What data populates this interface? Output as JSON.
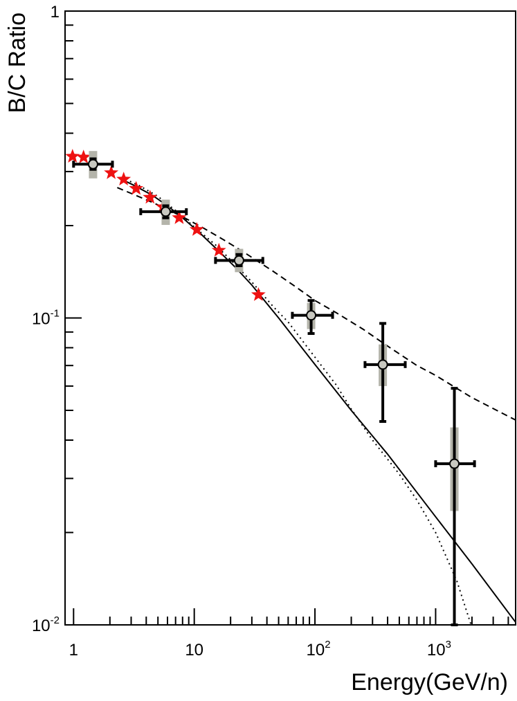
{
  "chart_data": {
    "type": "scatter",
    "xlabel": "Energy(GeV/n)",
    "ylabel": "B/C Ratio",
    "xscale": "log",
    "yscale": "log",
    "xlim": [
      0.85,
      4600
    ],
    "ylim": [
      0.01,
      1
    ],
    "grid": false,
    "x_ticks": [
      {
        "value": 1,
        "base": "1",
        "exp": ""
      },
      {
        "value": 10,
        "base": "10",
        "exp": ""
      },
      {
        "value": 100,
        "base": "10",
        "exp": "2"
      },
      {
        "value": 1000,
        "base": "10",
        "exp": "3"
      }
    ],
    "y_ticks": [
      {
        "value": 1,
        "base": "1",
        "exp": ""
      },
      {
        "value": 0.1,
        "base": "10",
        "exp": "-1"
      },
      {
        "value": 0.01,
        "base": "10",
        "exp": "-2"
      }
    ],
    "series": [
      {
        "style": "circle-errorbars",
        "color": "#000000",
        "fill": "#c8c8c0",
        "syst_color": "#b4b4aa",
        "points": [
          {
            "x": 1.45,
            "y": 0.317,
            "xlo": 1.0,
            "xhi": 2.1,
            "ylo": 0.305,
            "yhi": 0.33,
            "slo": 0.285,
            "shi": 0.35
          },
          {
            "x": 5.8,
            "y": 0.222,
            "xlo": 3.6,
            "xhi": 8.6,
            "ylo": 0.212,
            "yhi": 0.232,
            "slo": 0.201,
            "shi": 0.243
          },
          {
            "x": 23.5,
            "y": 0.154,
            "xlo": 15.0,
            "xhi": 37.0,
            "ylo": 0.148,
            "yhi": 0.161,
            "slo": 0.141,
            "shi": 0.168
          },
          {
            "x": 93,
            "y": 0.102,
            "xlo": 65,
            "xhi": 140,
            "ylo": 0.089,
            "yhi": 0.114,
            "slo": 0.092,
            "shi": 0.112
          },
          {
            "x": 365,
            "y": 0.0705,
            "xlo": 260,
            "xhi": 560,
            "ylo": 0.046,
            "yhi": 0.096,
            "slo": 0.06,
            "shi": 0.082
          },
          {
            "x": 1430,
            "y": 0.0335,
            "xlo": 1000,
            "xhi": 2100,
            "ylo": 0.01,
            "yhi": 0.059,
            "slo": 0.0235,
            "shi": 0.044
          }
        ]
      },
      {
        "style": "stars",
        "color": "#ee1111",
        "points": [
          {
            "x": 0.98,
            "y": 0.336
          },
          {
            "x": 1.21,
            "y": 0.334
          },
          {
            "x": 2.05,
            "y": 0.297
          },
          {
            "x": 2.6,
            "y": 0.283
          },
          {
            "x": 3.3,
            "y": 0.264
          },
          {
            "x": 4.3,
            "y": 0.247
          },
          {
            "x": 5.5,
            "y": 0.23
          },
          {
            "x": 7.5,
            "y": 0.212
          },
          {
            "x": 10.5,
            "y": 0.194
          },
          {
            "x": 16,
            "y": 0.166
          },
          {
            "x": 34,
            "y": 0.119
          }
        ]
      },
      {
        "style": "solid-line",
        "color": "#000000",
        "points": [
          [
            2.5,
            0.283
          ],
          [
            3.2,
            0.27
          ],
          [
            4.5,
            0.251
          ],
          [
            6,
            0.232
          ],
          [
            8,
            0.212
          ],
          [
            11,
            0.19
          ],
          [
            16,
            0.165
          ],
          [
            22,
            0.146
          ],
          [
            30,
            0.128
          ],
          [
            50,
            0.1
          ],
          [
            100,
            0.0705
          ],
          [
            200,
            0.05
          ],
          [
            400,
            0.036
          ],
          [
            1000,
            0.0225
          ],
          [
            2000,
            0.0158
          ],
          [
            4600,
            0.0102
          ]
        ]
      },
      {
        "style": "dashed-line",
        "color": "#000000",
        "points": [
          [
            2.3,
            0.266
          ],
          [
            3.2,
            0.252
          ],
          [
            4.5,
            0.238
          ],
          [
            6,
            0.226
          ],
          [
            8.5,
            0.211
          ],
          [
            12,
            0.196
          ],
          [
            17,
            0.181
          ],
          [
            25,
            0.165
          ],
          [
            45,
            0.142
          ],
          [
            70,
            0.126
          ],
          [
            100,
            0.114
          ],
          [
            150,
            0.104
          ],
          [
            250,
            0.092
          ],
          [
            400,
            0.081
          ],
          [
            700,
            0.07
          ],
          [
            1000,
            0.065
          ],
          [
            2000,
            0.055
          ],
          [
            4600,
            0.0465
          ]
        ]
      },
      {
        "style": "dotted-line",
        "color": "#000000",
        "points": [
          [
            2.7,
            0.283
          ],
          [
            3.5,
            0.27
          ],
          [
            5,
            0.249
          ],
          [
            7,
            0.224
          ],
          [
            10,
            0.198
          ],
          [
            15,
            0.173
          ],
          [
            22,
            0.149
          ],
          [
            30,
            0.131
          ],
          [
            45,
            0.109
          ],
          [
            60,
            0.097
          ],
          [
            100,
            0.0745
          ],
          [
            150,
            0.0605
          ],
          [
            200,
            0.0505
          ],
          [
            300,
            0.04
          ],
          [
            500,
            0.031
          ],
          [
            700,
            0.0255
          ],
          [
            1000,
            0.02
          ],
          [
            1500,
            0.0139
          ],
          [
            2000,
            0.0098
          ]
        ]
      }
    ]
  }
}
